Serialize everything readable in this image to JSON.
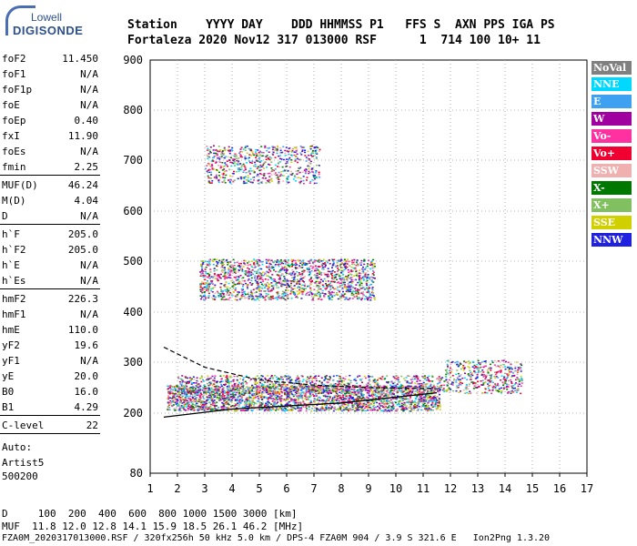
{
  "logo": {
    "line1": "Lowell",
    "line2": "DIGISONDE"
  },
  "header": {
    "labels": "Station    YYYY DAY    DDD HHMMSS P1   FFS S  AXN PPS IGA PS",
    "values": "Fortaleza 2020 Nov12 317 013000 RSF      1  714 100 10+ 11"
  },
  "params": [
    {
      "name": "foF2",
      "value": "11.450"
    },
    {
      "name": "foF1",
      "value": "N/A"
    },
    {
      "name": "foF1p",
      "value": "N/A"
    },
    {
      "name": "foE",
      "value": "N/A"
    },
    {
      "name": "foEp",
      "value": "0.40"
    },
    {
      "name": "fxI",
      "value": "11.90"
    },
    {
      "name": "foEs",
      "value": "N/A"
    },
    {
      "name": "fmin",
      "value": "2.25"
    },
    {
      "name": "MUF(D)",
      "value": "46.24"
    },
    {
      "name": "M(D)",
      "value": "4.04"
    },
    {
      "name": "D",
      "value": "N/A"
    },
    {
      "name": "h`F",
      "value": "205.0"
    },
    {
      "name": "h`F2",
      "value": "205.0"
    },
    {
      "name": "h`E",
      "value": "N/A"
    },
    {
      "name": "h`Es",
      "value": "N/A"
    },
    {
      "name": "hmF2",
      "value": "226.3"
    },
    {
      "name": "hmF1",
      "value": "N/A"
    },
    {
      "name": "hmE",
      "value": "110.0"
    },
    {
      "name": "yF2",
      "value": "19.6"
    },
    {
      "name": "yF1",
      "value": "N/A"
    },
    {
      "name": "yE",
      "value": "20.0"
    },
    {
      "name": "B0",
      "value": "16.0"
    },
    {
      "name": "B1",
      "value": "4.29"
    },
    {
      "name": "C-level",
      "value": "22"
    }
  ],
  "auto": {
    "line1": "Auto:",
    "line2": "Artist5",
    "line3": "500200"
  },
  "footer": {
    "d_row": "D     100  200  400  600  800 1000 1500 3000 [km]",
    "muf_row": "MUF  11.8 12.0 12.8 14.1 15.9 18.5 26.1 46.2 [MHz]",
    "info_row": "FZA0M_2020317013000.RSF / 320fx256h 50 kHz 5.0 km / DPS-4 FZA0M 904 / 3.9 S 321.6 E   Ion2Png 1.3.20"
  },
  "legend": [
    {
      "label": "NoVal",
      "color": "#808080"
    },
    {
      "label": "NNE",
      "color": "#00d8ff"
    },
    {
      "label": "E",
      "color": "#3ea0f0"
    },
    {
      "label": "W",
      "color": "#a000a0"
    },
    {
      "label": "Vo-",
      "color": "#ff30a0"
    },
    {
      "label": "Vo+",
      "color": "#f00030"
    },
    {
      "label": "SSW",
      "color": "#f0b0b0"
    },
    {
      "label": "X-",
      "color": "#007800"
    },
    {
      "label": "X+",
      "color": "#80c060"
    },
    {
      "label": "SSE",
      "color": "#d0d000"
    },
    {
      "label": "NNW",
      "color": "#2020e0"
    }
  ],
  "chart_data": {
    "type": "scatter",
    "xlabel": "",
    "ylabel": "",
    "x_ticks": [
      1,
      2,
      3,
      4,
      5,
      6,
      7,
      8,
      9,
      10,
      11,
      12,
      13,
      14,
      15,
      16,
      17
    ],
    "y_ticks": [
      80,
      200,
      300,
      400,
      500,
      600,
      700,
      800,
      900
    ],
    "xlim": [
      1,
      17
    ],
    "ylim": [
      80,
      900
    ],
    "grid": true,
    "legend_position": "right",
    "clusters": [
      {
        "name": "F trace main",
        "x_range": [
          1.6,
          11.6
        ],
        "y_range": [
          205,
          255
        ],
        "density": 0.9
      },
      {
        "name": "F trace upper",
        "x_range": [
          2.0,
          11.8
        ],
        "y_range": [
          240,
          275
        ],
        "density": 0.45
      },
      {
        "name": "2nd hop",
        "x_range": [
          2.8,
          9.2
        ],
        "y_range": [
          425,
          505
        ],
        "density": 0.55
      },
      {
        "name": "3rd hop",
        "x_range": [
          3.0,
          7.2
        ],
        "y_range": [
          655,
          730
        ],
        "density": 0.35
      },
      {
        "name": "right trace",
        "x_range": [
          11.8,
          14.6
        ],
        "y_range": [
          240,
          305
        ],
        "density": 0.4
      }
    ],
    "profile_lower": [
      [
        1.5,
        192
      ],
      [
        4,
        208
      ],
      [
        8,
        220
      ],
      [
        11.5,
        240
      ]
    ],
    "profile_upper": [
      [
        1.5,
        330
      ],
      [
        3,
        290
      ],
      [
        5,
        265
      ],
      [
        7,
        255
      ],
      [
        9,
        250
      ],
      [
        11.45,
        248
      ]
    ]
  }
}
